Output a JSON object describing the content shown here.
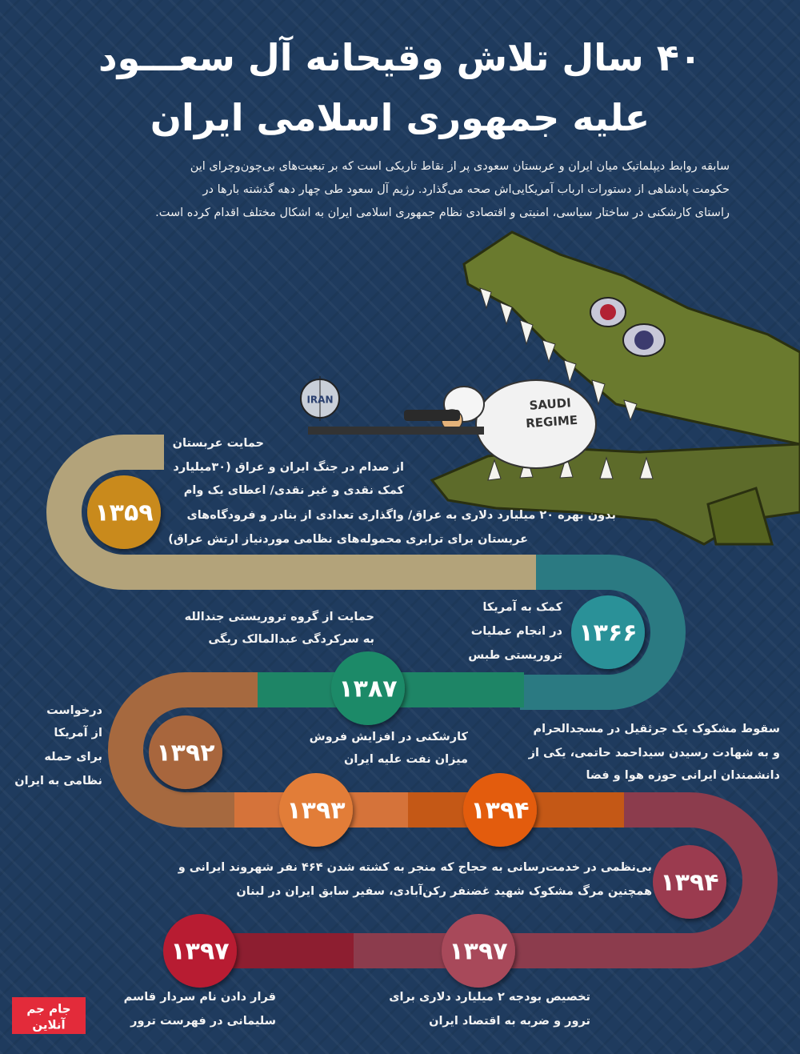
{
  "header": {
    "title": [
      "۴۰ سال تلاش وقیحانه آل سعـــود",
      "علیه جمهوری اسلامی ایران"
    ],
    "intro": [
      "سابقه روابط دیپلماتیک میان ایران و عربستان سعودی پر از نقاط تاریکی است که بر تبعیت‌های بی‌چون‌وچرای این",
      "حکومت پادشاهی از دستورات ارباب آمریکایی‌اش صحه می‌گذارد. رژیم آل سعود طی چهار دهه گذشته بارها در",
      "راستای کارشکنی در ساختار سیاسی، امنیتی و اقتصادی نظام جمهوری اسلامی ایران به اشکال مختلف اقدام کرده است."
    ]
  },
  "illustration": {
    "scope_label": "IRAN",
    "badge": [
      "SAUDI",
      "REGIME"
    ]
  },
  "events": [
    {
      "year": "۱۳۵۹",
      "lines": [
        "حمایت عربستان",
        "از صدام در جنگ ایران و عراق (۳۰میلیارد",
        "کمک نقدی و غیر نقدی/ اعطای یک وام",
        "بدون بهره ۲۰ میلیارد دلاری به عراق/ واگذاری تعدادی از بنادر و فرودگاه‌های",
        "عربستان برای ترابری محموله‌های نظامی موردنیاز ارتش عراق)"
      ]
    },
    {
      "year": "۱۳۶۶",
      "lines": [
        "کمک به آمریکا",
        "در انجام عملیات",
        "تروریستی طبس"
      ]
    },
    {
      "year": "۱۳۸۷",
      "lines": [
        "حمایت از گروه تروریستی جندالله",
        "به سرکردگی عبدالمالک ریگی"
      ]
    },
    {
      "year": "۱۳۹۲",
      "lines": [
        "درخواست",
        "از آمریکا",
        "برای حمله",
        "نظامی به ایران"
      ]
    },
    {
      "year": "۱۳۹۳",
      "lines": [
        "کارشکنی در افزایش فروش",
        "میزان نفت علیه ایران"
      ]
    },
    {
      "year": "۱۳۹۴",
      "lines": [
        "سقوط مشکوک یک جرثقیل در مسجدالحرام",
        "و به شهادت رسیدن سیداحمد حاتمی، یکی از",
        "دانشمندان ایرانی حوزه هوا و فضا"
      ]
    },
    {
      "year": "۱۳۹۴",
      "lines": [
        "بی‌نظمی در خدمت‌رسانی به حجاج که منجر به کشته شدن ۴۶۴ نفر شهروند ایرانی و",
        "همچنین مرگ مشکوک شهید غضنفر رکن‌آبادی، سفیر سابق ایران در لبنان"
      ]
    },
    {
      "year": "۱۳۹۷",
      "lines": [
        "تخصیص بودجه ۲ میلیارد دلاری برای",
        "ترور و ضربه به اقتصاد ایران"
      ]
    },
    {
      "year": "۱۳۹۷",
      "lines": [
        "قرار دادن نام سردار قاسم",
        "سلیمانی در فهرست ترور"
      ]
    }
  ],
  "logo": [
    "جام جم",
    "آنلاین"
  ]
}
